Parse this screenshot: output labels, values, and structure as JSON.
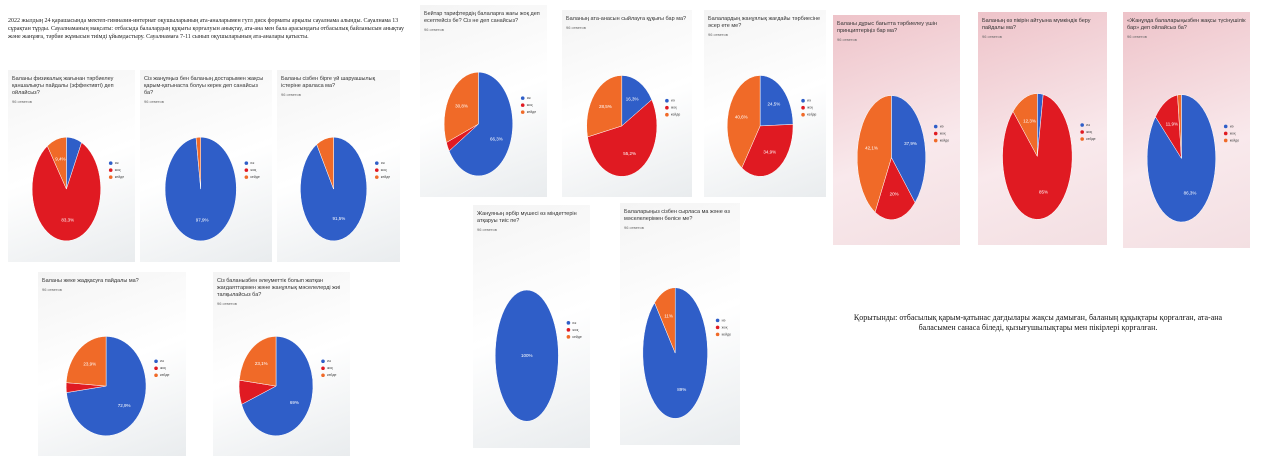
{
  "intro": "2022 жылдың 24 қарашасында мектеп-гимназия-интернат оқушыларының ата-аналарымен гугл диск форматы арқылы сауалнама алынды. Сауалнама 13 сұрақтан тұрды. Сауалнаманың мақсаты: отбасыда балалардың құқығы қорғалуын анықтау, ата-ана мен бала арасындағы отбасылық байланысын анықтау және жанұяға, тәрбие жұмысын тиімді ұйымдастыру. Сауалнамаға 7-11 сынып оқушыларының ата-аналары қатысты.",
  "legend": [
    {
      "label": "иә",
      "color": "#2f5ec8"
    },
    {
      "label": "жоқ",
      "color": "#e01a22"
    },
    {
      "label": "кейде",
      "color": "#f06a28"
    }
  ],
  "photos": [
    {
      "question": "Баланы физикалық жағынан тәрбиелеу қаншалықты пайдалы (эффективті) деп ойлайсыз?",
      "responses": "96 ответов",
      "values": [
        7.3,
        83.3,
        9.4
      ],
      "value_labels": [
        null,
        "83,3%",
        "9,4%"
      ]
    },
    {
      "question": "Сіз жанұяңыз бен баланың достарымен жақсы қарым-қатынаста болуы керек деп санайсыз ба?",
      "responses": "96 ответов",
      "values": [
        97.9,
        0,
        2.1
      ],
      "value_labels": [
        "97,9%",
        null,
        null
      ]
    },
    {
      "question": "Баланы сізбен бірге үй шаруашылық істеріне араласа ма?",
      "responses": "96 ответов",
      "values": [
        91.5,
        0,
        8.5
      ],
      "value_labels": [
        "91,5%",
        null,
        null
      ]
    },
    {
      "question": "Баланы жеке жадқасуға пайдалы ма?",
      "responses": "96 ответов",
      "values": [
        72.9,
        3.2,
        23.9
      ],
      "value_labels": [
        "72,9%",
        null,
        "23,9%"
      ]
    },
    {
      "question": "Сіз баланызбен әлеуметтік болып жатқан жағдаяттармен және жанұялық мәселелерді жиі талқылайсыз ба?",
      "responses": "96 ответов",
      "values": [
        69,
        7.9,
        23.1
      ],
      "value_labels": [
        "69%",
        null,
        "23,1%"
      ]
    },
    {
      "question": "Бейтар тарифтердің балаларға жағы жоқ деп есептейсіз бе? Сіз не деп санайсыз?",
      "responses": "96 ответов",
      "values": [
        66.3,
        2.9,
        30.8
      ],
      "value_labels": [
        "66,3%",
        null,
        "30,8%"
      ]
    },
    {
      "question": "Баланың ата-анасын сыйлауға құқығы бар ма?",
      "responses": "96 ответов",
      "values": [
        16.3,
        55.2,
        28.5
      ],
      "value_labels": [
        "16,3%",
        "55,2%",
        "28,5%"
      ]
    },
    {
      "question": "Балалардың жанұялық жағдайы тәрбиесіне әсер ете ме?",
      "responses": "96 ответов",
      "values": [
        24.5,
        34.9,
        40.6
      ],
      "value_labels": [
        "24,5%",
        "34,9%",
        "40,6%"
      ]
    },
    {
      "question": "Жанұяның әрбір мүшесі өз міндеттерін атқаруы тиіс пе?",
      "responses": "96 ответов",
      "values": [
        100,
        0,
        0
      ],
      "value_labels": [
        "100%",
        null,
        null
      ]
    },
    {
      "question": "Балаларыңыз сізбен сырласа ма және өз мәселелерімен бөлісе ме?",
      "responses": "96 ответов",
      "values": [
        89,
        0,
        11
      ],
      "value_labels": [
        "89%",
        null,
        "11%"
      ]
    },
    {
      "question": "Баланы дұрыс бағытта тәрбиелеу үшін принциптеріңіз бар ма?",
      "responses": "96 ответов",
      "values": [
        37.9,
        20,
        42.1
      ],
      "value_labels": [
        "37,9%",
        "20%",
        "42,1%"
      ]
    },
    {
      "question": "Баланың өз пікірін айтуына мүмкіндік беру пайдалы ма?",
      "responses": "96 ответов",
      "values": [
        2.7,
        85,
        12.3
      ],
      "value_labels": [
        null,
        "85%",
        "12,3%"
      ]
    },
    {
      "question": "«Жанұяда балаларыңызбен жақсы түсінушілік бар» деп ойлайсыз ба?",
      "responses": "96 ответов",
      "values": [
        86.3,
        11.9,
        1.8
      ],
      "value_labels": [
        "86,3%",
        "11,9%",
        null
      ]
    }
  ],
  "conclusion": "Қорытынды: отбасылық қарым-қатынас дағдылары жақсы дамыған, баланың құқықтары қорғалған, ата-ана баласымен санаса біледі, қызығушылықтары мен пікірлері қорғалған."
}
